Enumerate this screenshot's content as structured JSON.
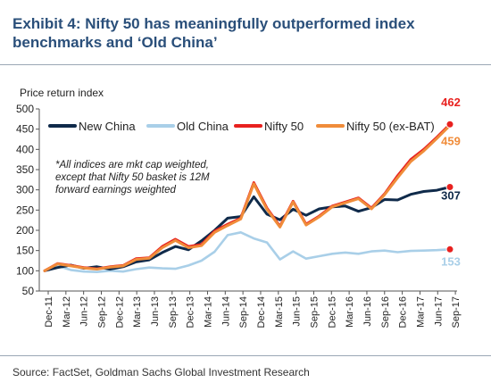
{
  "header": {
    "title_line1": "Exhibit 4: Nifty 50 has meaningfully outperformed index",
    "title_line2": "benchmarks and ‘Old China’"
  },
  "footer": {
    "source": "Source: FactSet, Goldman Sachs Global Investment Research"
  },
  "chart_data": {
    "type": "line",
    "title": "",
    "ylabel": "Price return index",
    "xlabel": "",
    "ylim": [
      50,
      500
    ],
    "yticks": [
      50,
      100,
      150,
      200,
      250,
      300,
      350,
      400,
      450,
      500
    ],
    "grid": false,
    "legend_position": "top",
    "annotation": "*All indices are mkt cap weighted, except that Nifty 50 basket is 12M forward earnings weighted",
    "x_tick_labels": [
      "Dec-11",
      "Mar-12",
      "Jun-12",
      "Sep-12",
      "Dec-12",
      "Mar-13",
      "Jun-13",
      "Sep-13",
      "Dec-13",
      "Mar-14",
      "Jun-14",
      "Sep-14",
      "Dec-14",
      "Mar-15",
      "Jun-15",
      "Sep-15",
      "Dec-15",
      "Mar-16",
      "Jun-16",
      "Sep-16",
      "Dec-16",
      "Mar-17",
      "Jun-17",
      "Sep-17"
    ],
    "series": [
      {
        "name": "New China",
        "color": "#0f2a4a",
        "end_label": "307",
        "values": [
          100,
          108,
          114,
          106,
          110,
          104,
          110,
          122,
          127,
          145,
          160,
          152,
          174,
          200,
          230,
          234,
          283,
          240,
          226,
          252,
          237,
          253,
          258,
          260,
          247,
          256,
          276,
          275,
          289,
          296,
          299,
          307
        ]
      },
      {
        "name": "Old China",
        "color": "#a9cfe8",
        "end_label": "153",
        "values": [
          100,
          112,
          102,
          98,
          97,
          100,
          98,
          104,
          108,
          106,
          105,
          113,
          125,
          147,
          188,
          195,
          180,
          170,
          128,
          148,
          130,
          136,
          142,
          145,
          142,
          148,
          150,
          146,
          149,
          150,
          151,
          153
        ]
      },
      {
        "name": "Nifty 50",
        "color": "#e8211f",
        "end_label": "462",
        "values": [
          100,
          118,
          113,
          108,
          105,
          110,
          113,
          130,
          132,
          160,
          178,
          160,
          165,
          198,
          215,
          230,
          318,
          255,
          210,
          272,
          215,
          235,
          260,
          270,
          280,
          255,
          290,
          335,
          375,
          400,
          430,
          462
        ]
      },
      {
        "name": "Nifty 50 (ex-BAT)",
        "color": "#f08c3a",
        "end_label": "459",
        "values": [
          100,
          117,
          112,
          107,
          104,
          109,
          112,
          128,
          131,
          157,
          175,
          157,
          162,
          195,
          212,
          228,
          315,
          252,
          208,
          270,
          213,
          233,
          258,
          268,
          278,
          253,
          288,
          330,
          370,
          396,
          427,
          459
        ]
      }
    ]
  }
}
